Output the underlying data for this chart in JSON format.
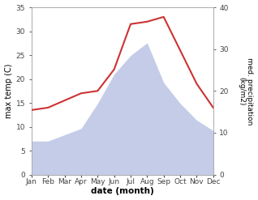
{
  "months": [
    "Jan",
    "Feb",
    "Mar",
    "Apr",
    "May",
    "Jun",
    "Jul",
    "Aug",
    "Sep",
    "Oct",
    "Nov",
    "Dec"
  ],
  "max_temp": [
    13.5,
    14.0,
    15.5,
    17.0,
    17.5,
    22.0,
    31.5,
    32.0,
    33.0,
    26.0,
    19.0,
    14.0
  ],
  "precipitation": [
    8.0,
    8.0,
    9.5,
    11.0,
    17.0,
    24.0,
    28.5,
    31.5,
    22.0,
    17.0,
    13.0,
    10.5
  ],
  "temp_color": "#cc3333",
  "precip_fill_color": "#c5cce8",
  "ylim_left": [
    0,
    35
  ],
  "ylim_right": [
    0,
    40
  ],
  "yticks_left": [
    0,
    5,
    10,
    15,
    20,
    25,
    30,
    35
  ],
  "yticks_right": [
    0,
    10,
    20,
    30,
    40
  ],
  "xlabel": "date (month)",
  "ylabel_left": "max temp (C)",
  "ylabel_right": "med. precipitation\n(kg/m2)"
}
